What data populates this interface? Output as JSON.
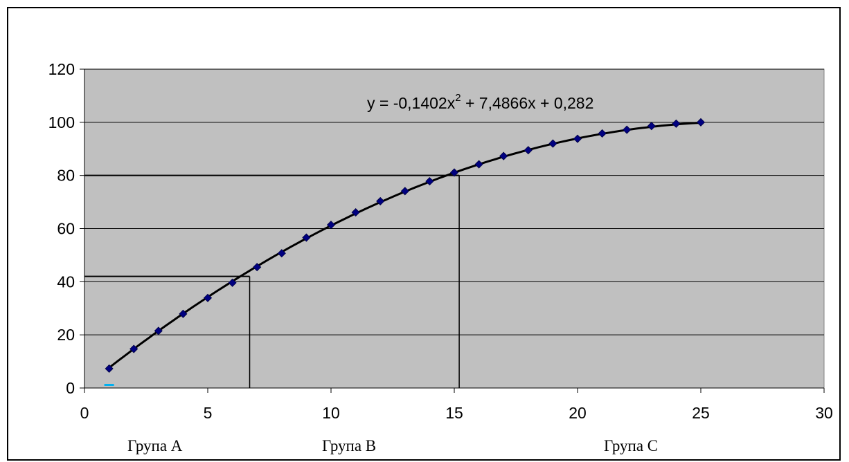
{
  "chart_data": {
    "type": "scatter",
    "plot_background": "#c0c0c0",
    "marker_color": "#000080",
    "grid": true,
    "xlim": [
      0,
      30
    ],
    "ylim": [
      0,
      120
    ],
    "x_ticks": [
      0,
      5,
      10,
      15,
      20,
      25,
      30
    ],
    "y_ticks": [
      0,
      20,
      40,
      60,
      80,
      100,
      120
    ],
    "x_tick_labels": [
      "0",
      "5",
      "10",
      "15",
      "20",
      "25",
      "30"
    ],
    "y_tick_labels": [
      "0",
      "20",
      "40",
      "60",
      "80",
      "100",
      "120"
    ],
    "series": [
      {
        "x": [
          1,
          2,
          3,
          4,
          5,
          6,
          7,
          8,
          9,
          10,
          11,
          12,
          13,
          14,
          15,
          16,
          17,
          18,
          19,
          20,
          21,
          22,
          23,
          24,
          25
        ],
        "y": [
          7.3,
          14.7,
          21.5,
          27.9,
          33.9,
          39.6,
          45.5,
          50.7,
          56.6,
          61.4,
          66.1,
          70.3,
          74.1,
          77.8,
          81.1,
          84.2,
          87.3,
          89.5,
          92.0,
          93.8,
          95.8,
          97.2,
          98.6,
          99.5,
          100.0
        ]
      }
    ],
    "trendline": {
      "type": "polynomial",
      "coefficients": [
        -0.1402,
        7.4866,
        0.282
      ],
      "x_range": [
        1,
        25
      ]
    },
    "equation_label": {
      "base": "y = -0,1402x",
      "exponent": "2",
      "rest": " + 7,4866x + 0,282"
    },
    "reference_lines": [
      {
        "x": 6.7,
        "y": 42
      },
      {
        "x": 15.2,
        "y": 80
      }
    ],
    "origin_marker_color": "#00b0f0",
    "group_labels": [
      "Група A",
      "Група B",
      "Група C"
    ]
  }
}
